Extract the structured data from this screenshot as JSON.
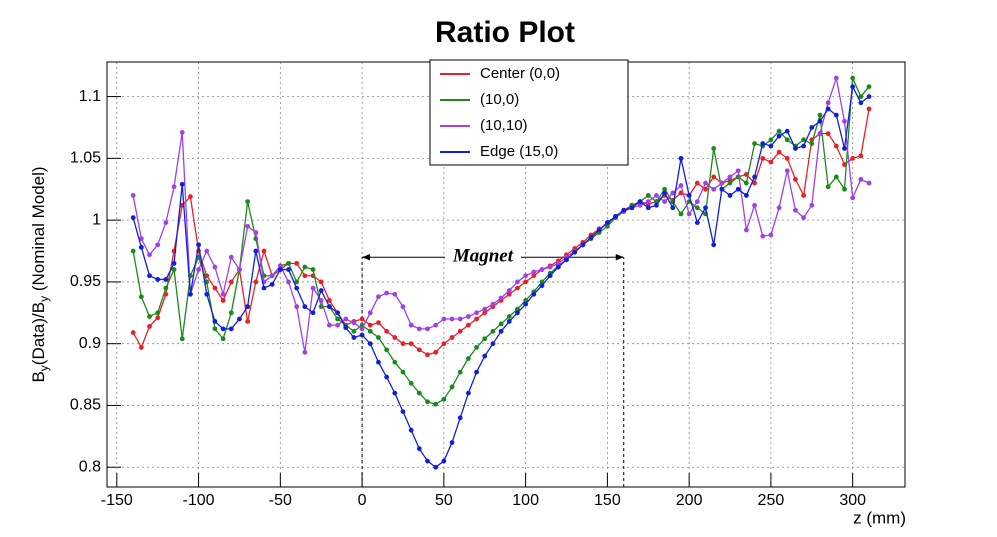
{
  "chart_data": {
    "type": "line",
    "title": "Ratio Plot",
    "xlabel": "z (mm)",
    "ylabel": [
      "B",
      "y",
      "(Data)/B",
      "y",
      " (Nominal Model)"
    ],
    "xlim": [
      -156,
      332
    ],
    "ylim": [
      0.784,
      1.128
    ],
    "xticks": [
      -150,
      -100,
      -50,
      0,
      50,
      100,
      150,
      200,
      250,
      300
    ],
    "yticks": [
      0.8,
      0.85,
      0.9,
      0.95,
      1,
      1.05,
      1.1
    ],
    "grid": true,
    "legend": "top-center",
    "annotations": [
      {
        "text": "Magnet",
        "x": [
          0,
          160
        ],
        "y": 0.97
      }
    ],
    "x": [
      -140,
      -135,
      -130,
      -125,
      -120,
      -115,
      -110,
      -105,
      -100,
      -95,
      -90,
      -85,
      -80,
      -75,
      -70,
      -65,
      -60,
      -55,
      -50,
      -45,
      -40,
      -35,
      -30,
      -25,
      -20,
      -15,
      -10,
      -5,
      0,
      5,
      10,
      15,
      20,
      25,
      30,
      35,
      40,
      45,
      50,
      55,
      60,
      65,
      70,
      75,
      80,
      85,
      90,
      95,
      100,
      105,
      110,
      115,
      120,
      125,
      130,
      135,
      140,
      145,
      150,
      155,
      160,
      165,
      170,
      175,
      180,
      185,
      190,
      195,
      200,
      205,
      210,
      215,
      220,
      225,
      230,
      235,
      240,
      245,
      250,
      255,
      260,
      265,
      270,
      275,
      280,
      285,
      290,
      295,
      300,
      305,
      310
    ],
    "series": [
      {
        "name": "Center (0,0)",
        "color": "#e8202a",
        "values": [
          0.909,
          0.897,
          0.914,
          0.921,
          0.94,
          0.975,
          1.012,
          1.019,
          0.975,
          0.955,
          0.945,
          0.935,
          0.95,
          0.96,
          0.918,
          0.95,
          0.975,
          0.955,
          0.96,
          0.965,
          0.965,
          0.955,
          0.955,
          0.95,
          0.935,
          0.925,
          0.915,
          0.918,
          0.92,
          0.915,
          0.917,
          0.91,
          0.905,
          0.9,
          0.9,
          0.895,
          0.891,
          0.893,
          0.9,
          0.905,
          0.91,
          0.915,
          0.92,
          0.925,
          0.93,
          0.935,
          0.94,
          0.945,
          0.95,
          0.955,
          0.96,
          0.963,
          0.967,
          0.972,
          0.977,
          0.982,
          0.988,
          0.993,
          0.997,
          1.003,
          1.008,
          1.012,
          1.015,
          1.013,
          1.015,
          1.02,
          1.016,
          1.022,
          1.02,
          1.03,
          1.025,
          1.035,
          1.03,
          1.032,
          1.035,
          1.037,
          1.03,
          1.05,
          1.047,
          1.055,
          1.05,
          1.033,
          1.02,
          1.065,
          1.07,
          1.07,
          1.06,
          1.045,
          1.05,
          1.052,
          1.09
        ]
      },
      {
        "name": "(10,0)",
        "color": "#1a8a1a",
        "values": [
          0.975,
          0.938,
          0.922,
          0.925,
          0.945,
          0.96,
          0.904,
          0.955,
          0.97,
          0.95,
          0.912,
          0.904,
          0.925,
          0.96,
          1.015,
          0.985,
          0.955,
          0.955,
          0.963,
          0.965,
          0.95,
          0.962,
          0.96,
          0.93,
          0.93,
          0.92,
          0.915,
          0.91,
          0.915,
          0.91,
          0.905,
          0.895,
          0.885,
          0.877,
          0.868,
          0.86,
          0.853,
          0.851,
          0.855,
          0.865,
          0.877,
          0.888,
          0.897,
          0.904,
          0.91,
          0.916,
          0.922,
          0.928,
          0.935,
          0.942,
          0.95,
          0.957,
          0.963,
          0.968,
          0.974,
          0.98,
          0.985,
          0.99,
          0.995,
          1.002,
          1.007,
          1.012,
          1.015,
          1.02,
          1.015,
          1.025,
          1.015,
          1.005,
          1.015,
          1.01,
          1.005,
          1.058,
          1.025,
          1.03,
          1.035,
          1.03,
          1.062,
          1.06,
          1.065,
          1.072,
          1.065,
          1.06,
          1.065,
          1.062,
          1.085,
          1.027,
          1.035,
          1.025,
          1.115,
          1.1,
          1.108
        ]
      },
      {
        "name": "(10,10)",
        "color": "#a040e8",
        "values": [
          1.02,
          0.985,
          0.972,
          0.98,
          0.998,
          1.027,
          1.071,
          0.94,
          0.96,
          0.975,
          0.962,
          0.94,
          0.97,
          0.96,
          0.995,
          0.99,
          0.95,
          0.955,
          0.963,
          0.95,
          0.93,
          0.893,
          0.945,
          0.935,
          0.915,
          0.915,
          0.92,
          0.917,
          0.912,
          0.925,
          0.938,
          0.941,
          0.94,
          0.93,
          0.915,
          0.912,
          0.912,
          0.915,
          0.92,
          0.92,
          0.92,
          0.922,
          0.925,
          0.928,
          0.932,
          0.937,
          0.943,
          0.95,
          0.955,
          0.958,
          0.96,
          0.962,
          0.965,
          0.97,
          0.975,
          0.98,
          0.986,
          0.992,
          0.998,
          1.003,
          1.007,
          1.01,
          1.012,
          1.015,
          1.02,
          1.015,
          1.022,
          1.028,
          1.005,
          1.015,
          1.03,
          1.025,
          1.03,
          1.035,
          1.04,
          0.992,
          1.012,
          0.987,
          0.988,
          1.01,
          1.04,
          1.008,
          1.002,
          1.012,
          1.07,
          1.095,
          1.115,
          1.08,
          1.018,
          1.033,
          1.03
        ]
      },
      {
        "name": "Edge (15,0)",
        "color": "#1020d8",
        "values": [
          1.002,
          0.978,
          0.955,
          0.952,
          0.952,
          0.965,
          1.029,
          0.94,
          0.98,
          0.94,
          0.918,
          0.912,
          0.912,
          0.92,
          0.93,
          0.975,
          0.945,
          0.948,
          0.96,
          0.96,
          0.945,
          0.93,
          0.925,
          0.943,
          0.93,
          0.925,
          0.913,
          0.905,
          0.907,
          0.9,
          0.885,
          0.873,
          0.86,
          0.845,
          0.83,
          0.815,
          0.805,
          0.8,
          0.805,
          0.82,
          0.84,
          0.86,
          0.877,
          0.89,
          0.9,
          0.91,
          0.918,
          0.925,
          0.932,
          0.94,
          0.947,
          0.955,
          0.962,
          0.968,
          0.974,
          0.98,
          0.986,
          0.992,
          0.998,
          1.003,
          1.008,
          1.01,
          1.015,
          1.01,
          1.012,
          1.022,
          1.01,
          1.05,
          1.02,
          0.998,
          1.01,
          0.98,
          1.025,
          1.02,
          1.025,
          1.02,
          1.035,
          1.062,
          1.06,
          1.068,
          1.072,
          1.058,
          1.06,
          1.075,
          1.08,
          1.09,
          1.085,
          1.058,
          1.108,
          1.095,
          1.1
        ]
      }
    ]
  }
}
